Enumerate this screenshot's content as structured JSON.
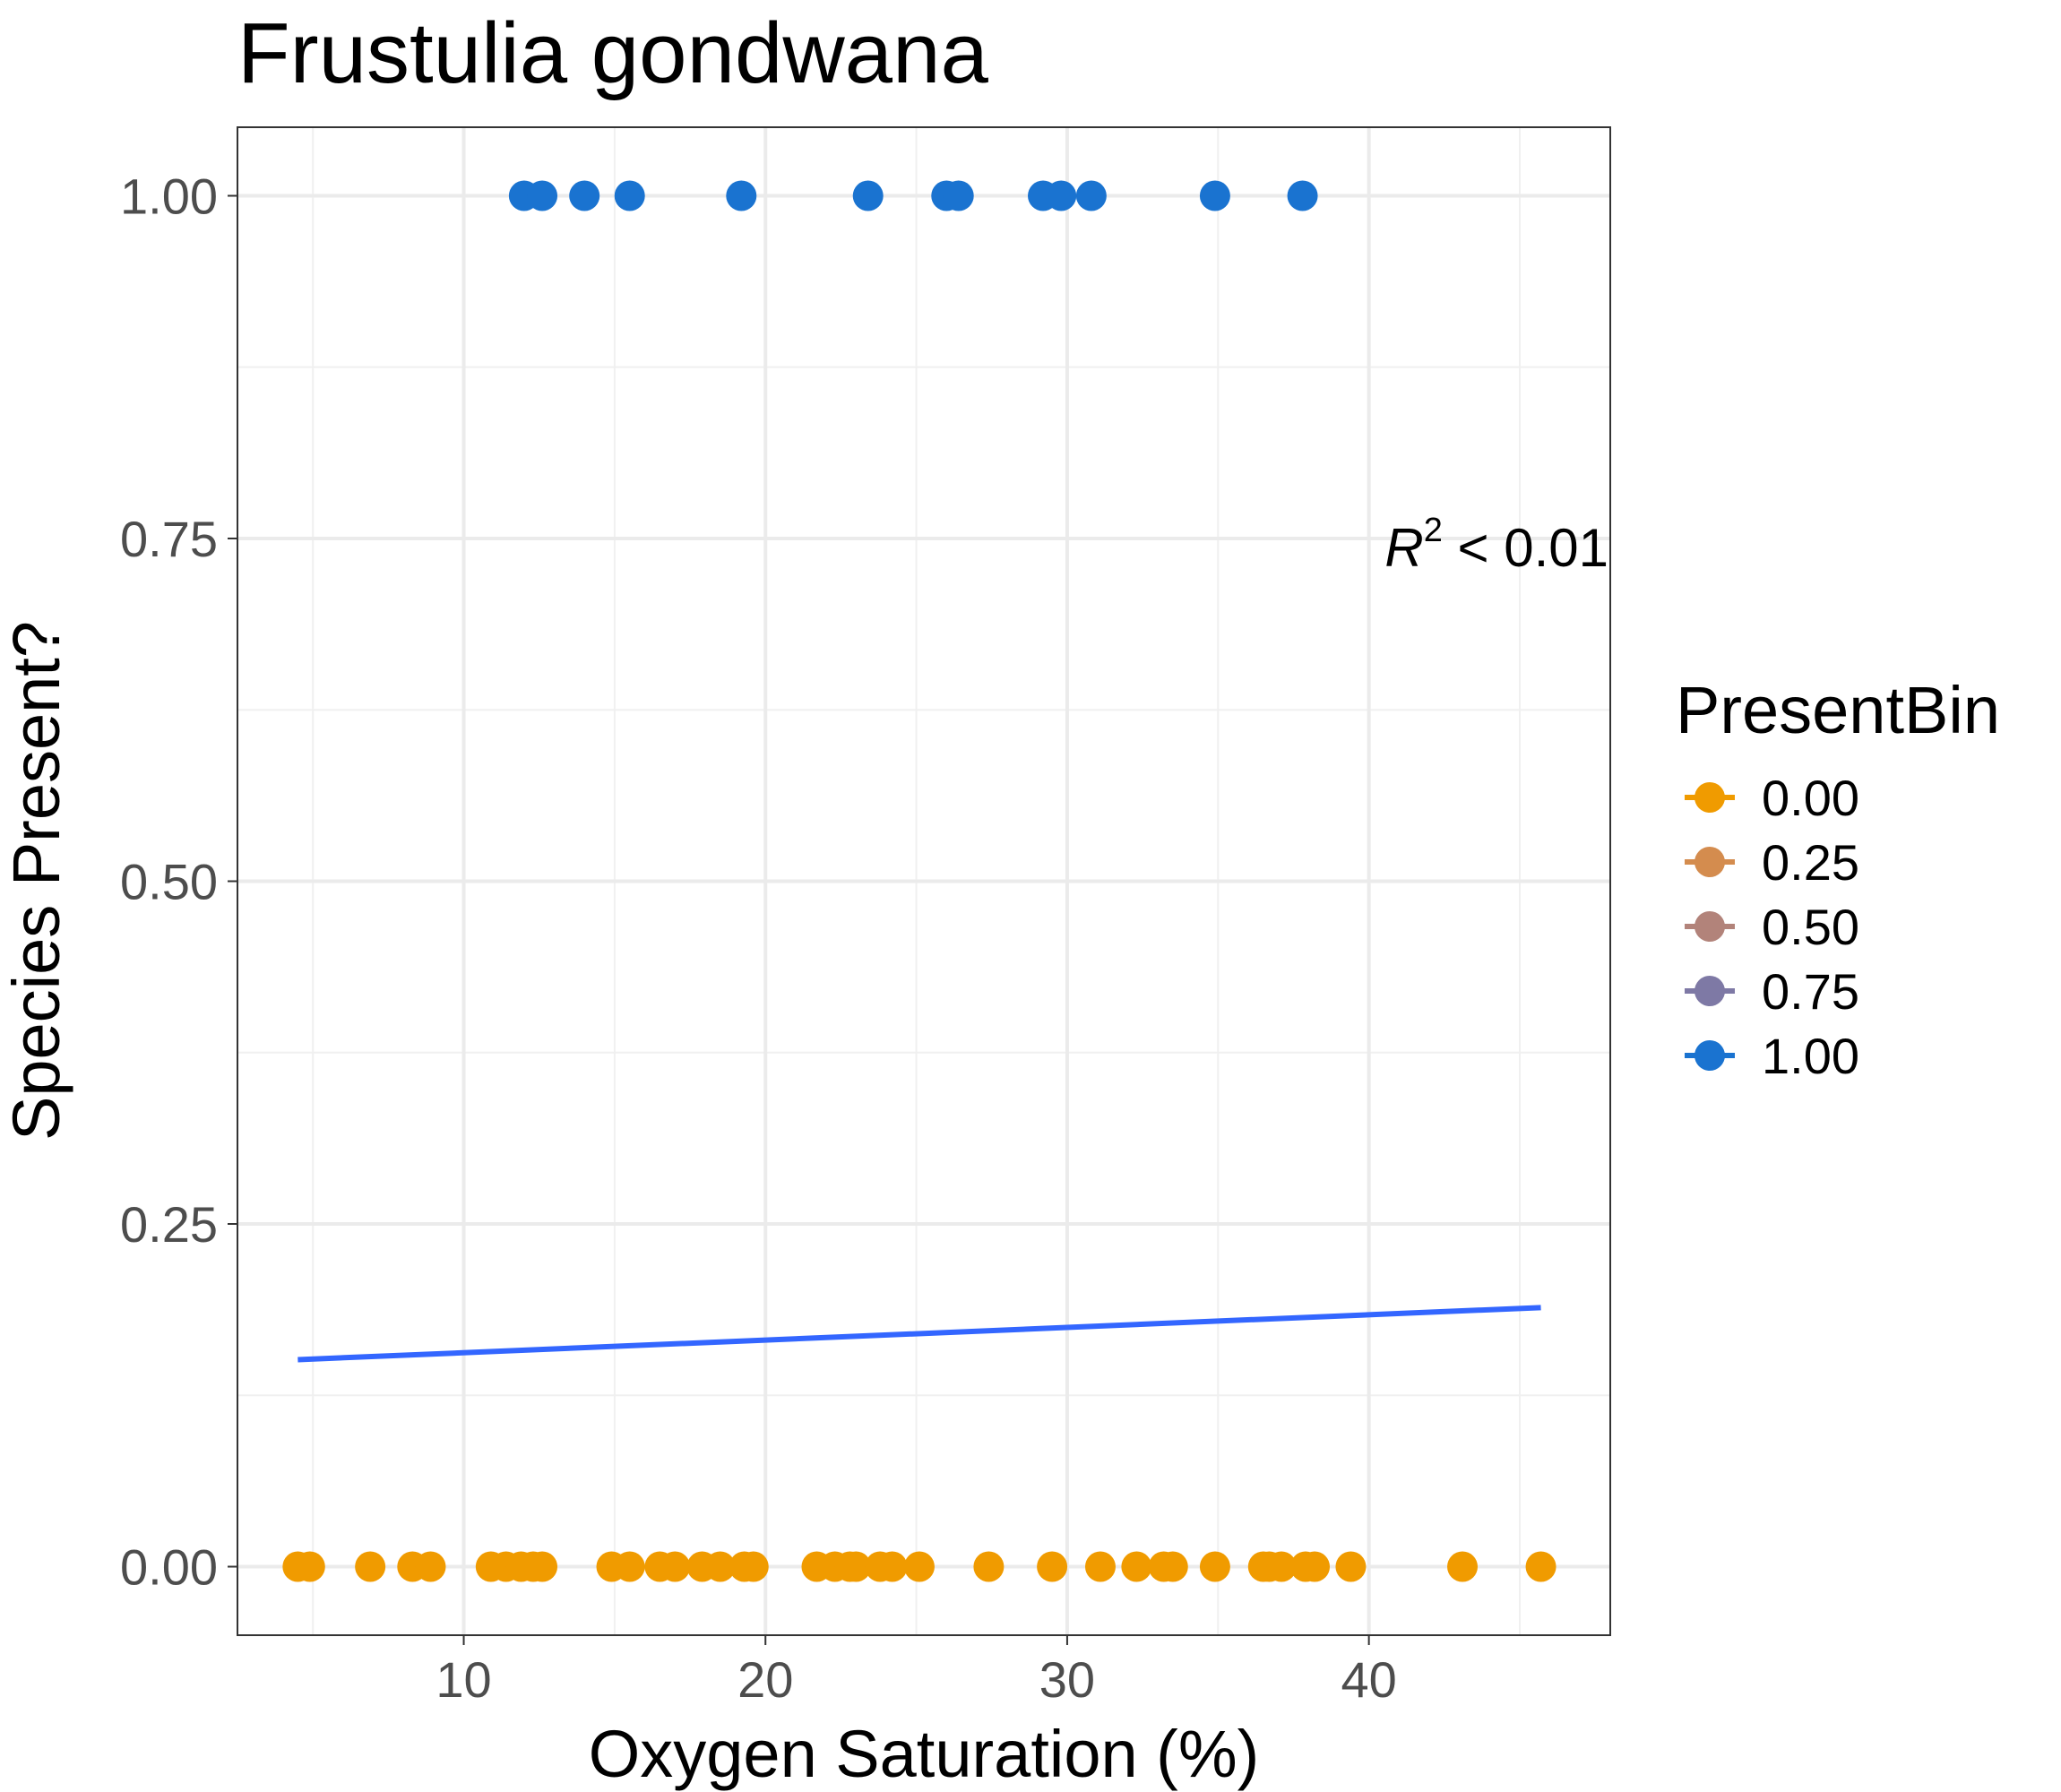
{
  "chart_data": {
    "type": "scatter",
    "title": "Frustulia gondwana",
    "xlabel": "Oxygen Saturation (%)",
    "ylabel": "Species Present?",
    "xlim": [
      2.5,
      48
    ],
    "ylim": [
      -0.05,
      1.05
    ],
    "x_ticks": [
      10,
      20,
      30,
      40
    ],
    "x_tick_labels": [
      "10",
      "20",
      "30",
      "40"
    ],
    "y_ticks": [
      0,
      0.25,
      0.5,
      0.75,
      1
    ],
    "y_tick_labels": [
      "0.00",
      "0.25",
      "0.50",
      "0.75",
      "1.00"
    ],
    "grid": true,
    "legend": {
      "title": "PresentBin",
      "placement": "right",
      "entries": [
        {
          "label": "0.00",
          "color": "#F09B00"
        },
        {
          "label": "0.25",
          "color": "#D48C4E"
        },
        {
          "label": "0.50",
          "color": "#B2837A"
        },
        {
          "label": "0.75",
          "color": "#7E79A5"
        },
        {
          "label": "1.00",
          "color": "#1A73D0"
        }
      ]
    },
    "annotation": {
      "r": "R",
      "sup": "2",
      "rest": " < 0.01"
    },
    "series": [
      {
        "name": "1.00",
        "color": "#1A73D0",
        "y": 1,
        "x": [
          12.0,
          12.6,
          14.0,
          15.5,
          19.2,
          23.4,
          26.0,
          26.4,
          29.2,
          29.8,
          30.8,
          34.9,
          37.8
        ]
      },
      {
        "name": "0.00",
        "color": "#F09B00",
        "y": 0,
        "x": [
          4.5,
          4.9,
          6.9,
          8.3,
          8.9,
          10.9,
          11.4,
          11.9,
          12.3,
          12.6,
          14.9,
          15.5,
          16.5,
          17.0,
          17.9,
          18.5,
          19.3,
          19.6,
          21.7,
          22.3,
          22.8,
          23.0,
          23.8,
          24.2,
          25.1,
          27.4,
          29.5,
          31.1,
          32.3,
          33.2,
          33.5,
          34.9,
          36.5,
          36.7,
          37.1,
          37.9,
          38.2,
          39.4,
          43.1,
          45.7
        ]
      }
    ],
    "trend_line": {
      "color": "#3366FF",
      "x": [
        4.5,
        45.7
      ],
      "y": [
        0.151,
        0.189
      ]
    }
  }
}
